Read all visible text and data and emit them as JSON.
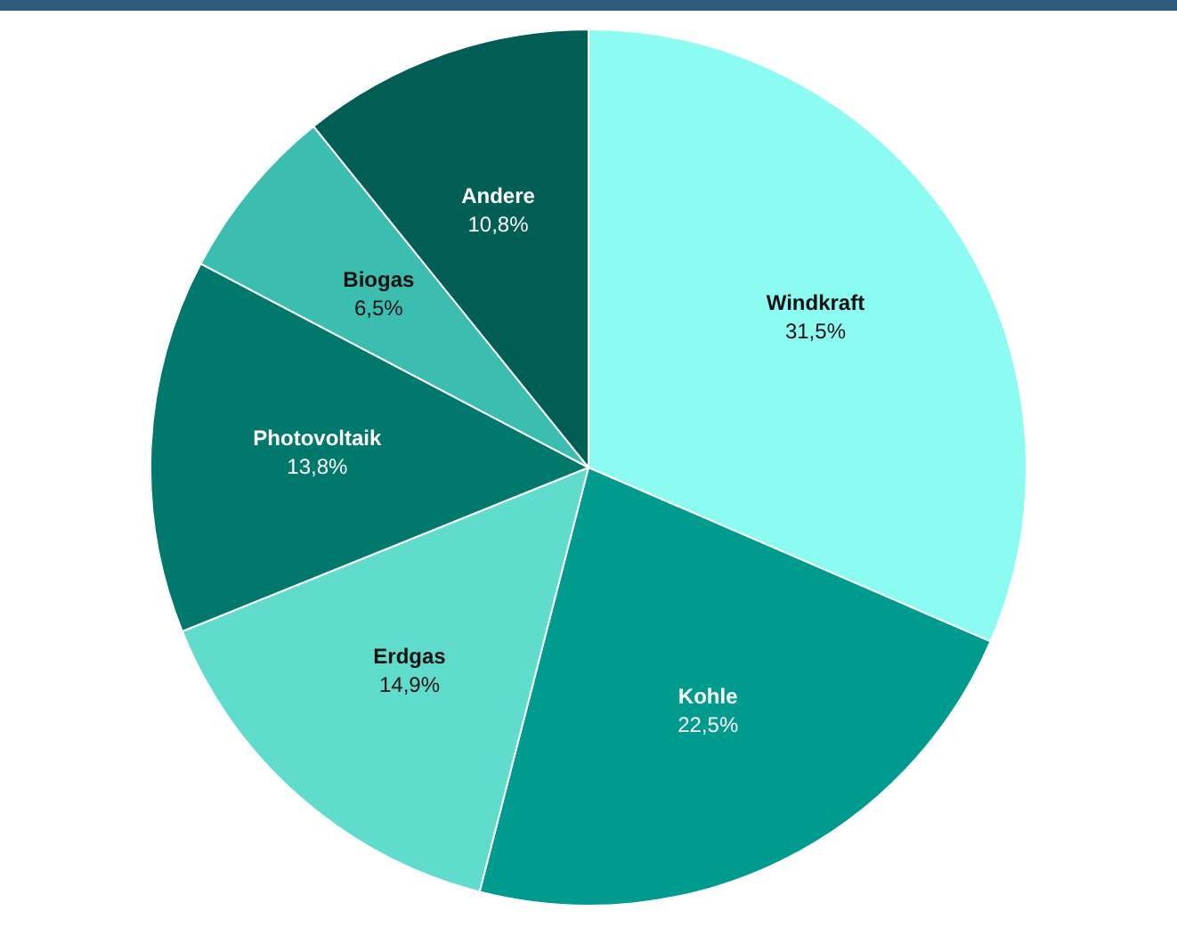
{
  "chart_data": {
    "type": "pie",
    "categories": [
      "Windkraft",
      "Kohle",
      "Erdgas",
      "Photovoltaik",
      "Biogas",
      "Andere"
    ],
    "values": [
      31.5,
      22.5,
      14.9,
      13.8,
      6.5,
      10.8
    ],
    "value_labels": [
      "31,5%",
      "22,5%",
      "14,9%",
      "13,8%",
      "6,5%",
      "10,8%"
    ],
    "colors": [
      "#8cfcf2",
      "#009b8f",
      "#5fdccc",
      "#00796c",
      "#3bbdb0",
      "#005e54"
    ],
    "legend": false
  }
}
